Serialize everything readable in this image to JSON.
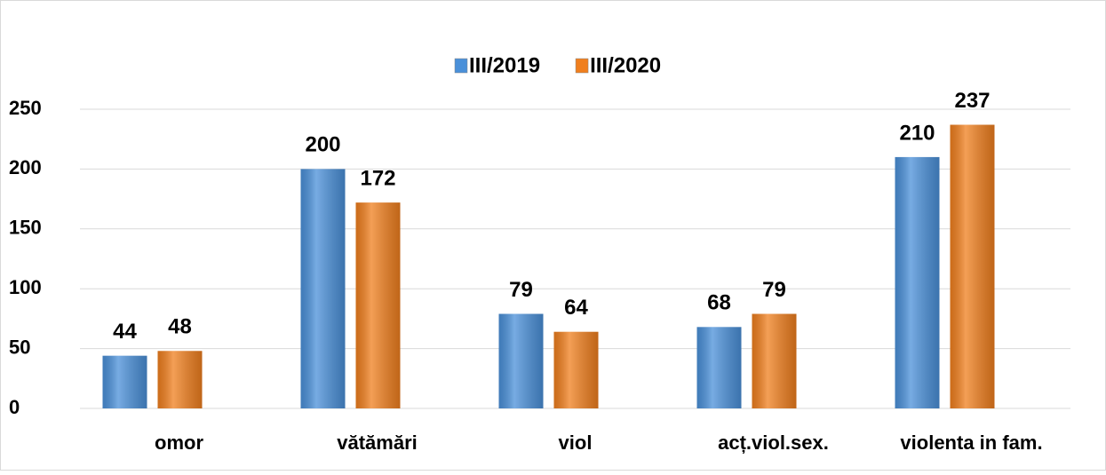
{
  "chart_data": {
    "type": "bar",
    "categories": [
      "omor",
      "vătămări",
      "viol",
      "acț.viol.sex.",
      "violenta in fam."
    ],
    "series": [
      {
        "name": "III/2019",
        "color": "#4a90d9",
        "values": [
          44,
          200,
          79,
          68,
          210
        ]
      },
      {
        "name": "III/2020",
        "color": "#f07f1e",
        "values": [
          48,
          172,
          64,
          79,
          237
        ]
      }
    ],
    "ylim": [
      0,
      250
    ],
    "yticks": [
      0,
      50,
      100,
      150,
      200,
      250
    ],
    "grid": true,
    "legend": "top"
  }
}
